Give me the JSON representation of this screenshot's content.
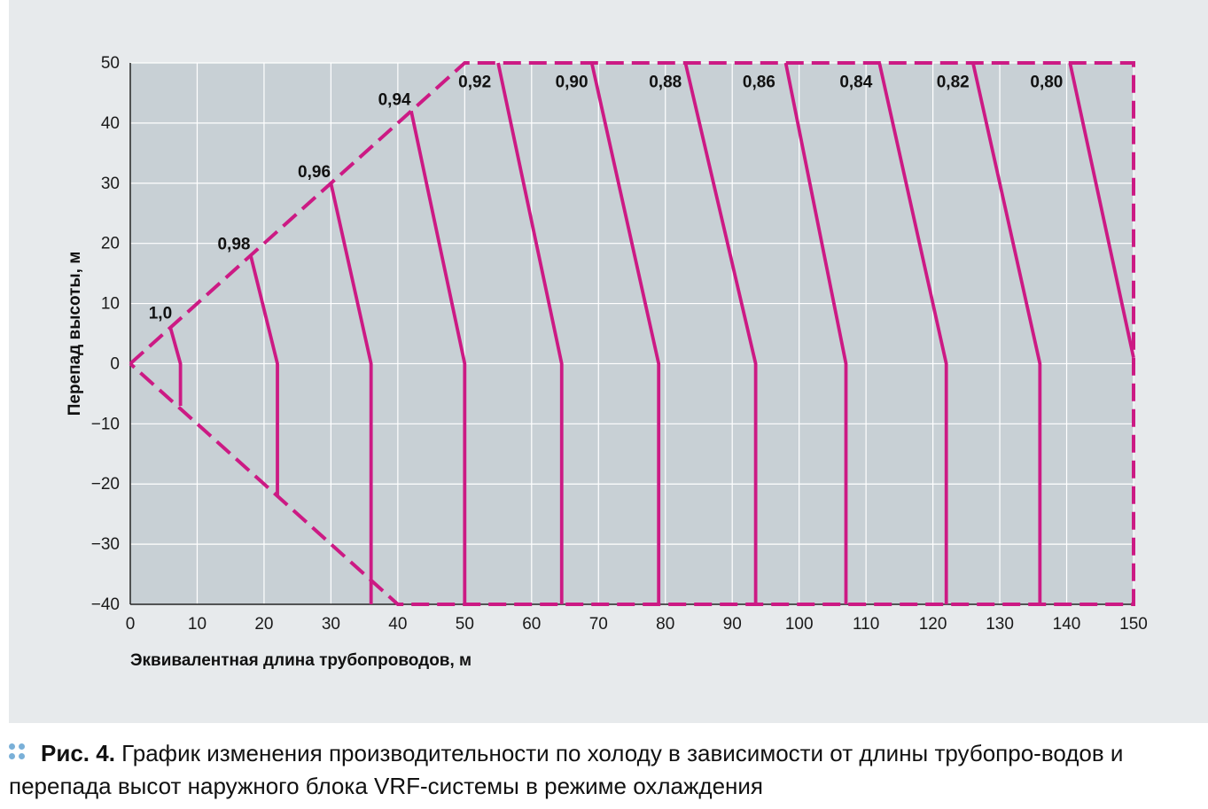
{
  "chart_data": {
    "type": "line",
    "title": "",
    "xlabel": "Эквивалентная длина трубопроводов, м",
    "ylabel": "Перепад высоты, м",
    "xlim": [
      0,
      150
    ],
    "ylim": [
      -40,
      50
    ],
    "x_ticks": [
      "0",
      "10",
      "20",
      "30",
      "40",
      "50",
      "60",
      "70",
      "80",
      "90",
      "100",
      "110",
      "120",
      "130",
      "140",
      "150"
    ],
    "y_ticks": [
      "50",
      "40",
      "30",
      "20",
      "10",
      "0",
      "−10",
      "−20",
      "−30",
      "−40"
    ],
    "grid": true,
    "line_color": "#cc1a84",
    "plot_background": "#c8d0d5",
    "boundary": [
      [
        0,
        0
      ],
      [
        50,
        50
      ],
      [
        150,
        50
      ],
      [
        150,
        -40
      ],
      [
        40,
        -40
      ],
      [
        0,
        0
      ]
    ],
    "series": [
      {
        "name": "1,0",
        "points": [
          [
            6,
            6
          ],
          [
            7.5,
            0
          ],
          [
            7.5,
            -7
          ]
        ],
        "label_at": [
          4.5,
          8.5
        ]
      },
      {
        "name": "0,98",
        "points": [
          [
            18,
            18
          ],
          [
            22,
            0
          ],
          [
            22,
            -22
          ]
        ],
        "label_at": [
          15.5,
          20
        ]
      },
      {
        "name": "0,96",
        "points": [
          [
            30,
            30
          ],
          [
            36,
            0
          ],
          [
            36,
            -40
          ]
        ],
        "label_at": [
          27.5,
          32
        ]
      },
      {
        "name": "0,94",
        "points": [
          [
            42,
            42
          ],
          [
            50,
            0
          ],
          [
            50,
            -40
          ]
        ],
        "label_at": [
          39.5,
          44
        ]
      },
      {
        "name": "0,92",
        "points": [
          [
            55,
            50
          ],
          [
            64.5,
            0
          ],
          [
            64.5,
            -40
          ]
        ],
        "label_at": [
          51.5,
          47
        ]
      },
      {
        "name": "0,90",
        "points": [
          [
            69,
            50
          ],
          [
            79,
            0
          ],
          [
            79,
            -40
          ]
        ],
        "label_at": [
          66,
          47
        ]
      },
      {
        "name": "0,88",
        "points": [
          [
            83,
            50
          ],
          [
            93.5,
            0
          ],
          [
            93.5,
            -40
          ]
        ],
        "label_at": [
          80,
          47
        ]
      },
      {
        "name": "0,86",
        "points": [
          [
            98,
            50
          ],
          [
            107,
            0
          ],
          [
            107,
            -40
          ]
        ],
        "label_at": [
          94,
          47
        ]
      },
      {
        "name": "0,84",
        "points": [
          [
            112,
            50
          ],
          [
            122,
            0
          ],
          [
            122,
            -40
          ]
        ],
        "label_at": [
          108.5,
          47
        ]
      },
      {
        "name": "0,82",
        "points": [
          [
            126,
            50
          ],
          [
            136,
            0
          ],
          [
            136,
            -40
          ]
        ],
        "label_at": [
          123,
          47
        ]
      },
      {
        "name": "0,80",
        "points": [
          [
            140.5,
            50
          ],
          [
            150,
            1
          ]
        ],
        "label_at": [
          137,
          47
        ]
      }
    ]
  },
  "caption": {
    "label": "Рис. 4.",
    "text": " График изменения производительности по холоду в зависимости от длины трубопро-водов и перепада высот наружного блока VRF-системы в режиме охлаждения"
  }
}
